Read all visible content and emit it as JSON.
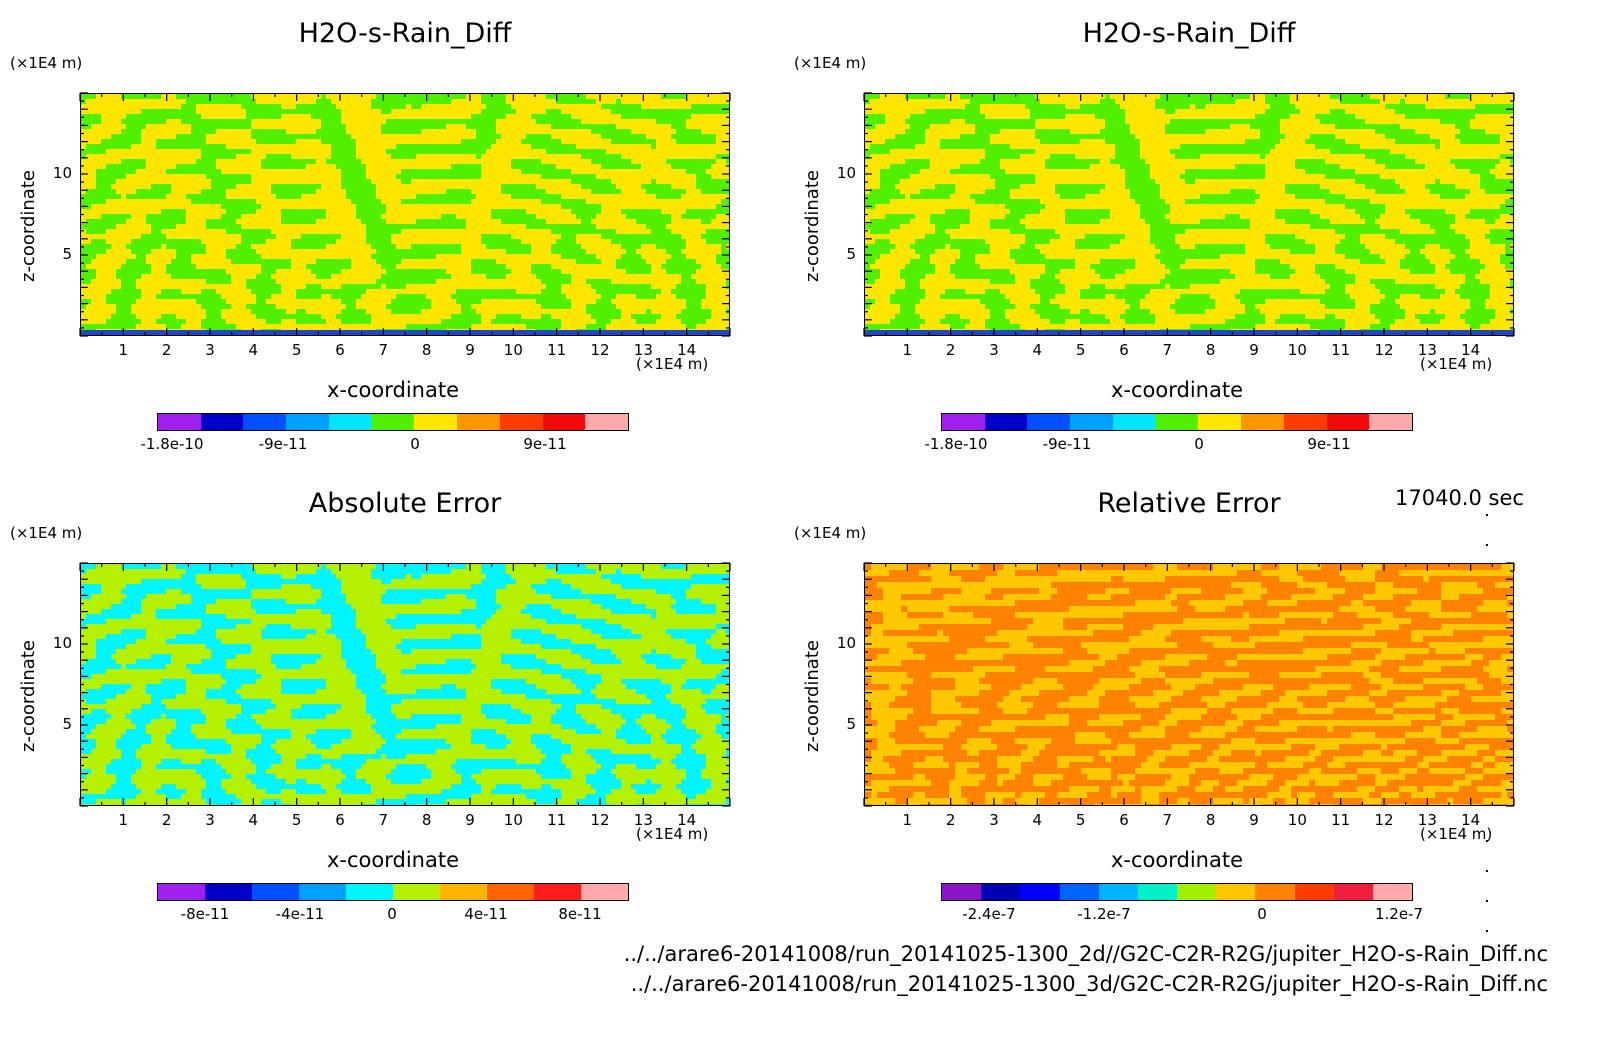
{
  "time_label": "17040.0 sec",
  "file_paths": [
    "../../arare6-20141008/run_20141025-1300_2d//G2C-C2R-R2G/jupiter_H2O-s-Rain_Diff.nc",
    "../../arare6-20141008/run_20141025-1300_3d/G2C-C2R-R2G/jupiter_H2O-s-Rain_Diff.nc"
  ],
  "chart_data": [
    {
      "type": "heatmap",
      "title": "H2O-s-Rain_Diff",
      "xlabel": "x-coordinate",
      "ylabel": "z-coordinate",
      "x_unit": "(×1E4 m)",
      "y_unit": "(×1E4 m)",
      "xlim": [
        0,
        15
      ],
      "ylim": [
        0,
        15
      ],
      "xticks": [
        "1",
        "2",
        "3",
        "4",
        "5",
        "6",
        "7",
        "8",
        "9",
        "10",
        "11",
        "12",
        "13",
        "14"
      ],
      "yticks": [
        "5",
        "10"
      ],
      "palette": [
        "#a020f0",
        "#0000c8",
        "#0050ff",
        "#00a0ff",
        "#00e6ff",
        "#50f000",
        "#ffe600",
        "#ff9600",
        "#ff3c00",
        "#f00a0a",
        "#ffaaaa"
      ],
      "dominant_colors": [
        "#50f000",
        "#ffe600"
      ],
      "colorbar_labels": [
        "-1.8e-10",
        "-9e-11",
        "0",
        "9e-11"
      ]
    },
    {
      "type": "heatmap",
      "title": "H2O-s-Rain_Diff",
      "xlabel": "x-coordinate",
      "ylabel": "z-coordinate",
      "x_unit": "(×1E4 m)",
      "y_unit": "(×1E4 m)",
      "xlim": [
        0,
        15
      ],
      "ylim": [
        0,
        15
      ],
      "xticks": [
        "1",
        "2",
        "3",
        "4",
        "5",
        "6",
        "7",
        "8",
        "9",
        "10",
        "11",
        "12",
        "13",
        "14"
      ],
      "yticks": [
        "5",
        "10"
      ],
      "palette": [
        "#a020f0",
        "#0000c8",
        "#0050ff",
        "#00a0ff",
        "#00e6ff",
        "#50f000",
        "#ffe600",
        "#ff9600",
        "#ff3c00",
        "#f00a0a",
        "#ffaaaa"
      ],
      "dominant_colors": [
        "#50f000",
        "#ffe600"
      ],
      "colorbar_labels": [
        "-1.8e-10",
        "-9e-11",
        "0",
        "9e-11"
      ]
    },
    {
      "type": "heatmap",
      "title": "Absolute Error",
      "xlabel": "x-coordinate",
      "ylabel": "z-coordinate",
      "x_unit": "(×1E4 m)",
      "y_unit": "(×1E4 m)",
      "xlim": [
        0,
        15
      ],
      "ylim": [
        0,
        15
      ],
      "xticks": [
        "1",
        "2",
        "3",
        "4",
        "5",
        "6",
        "7",
        "8",
        "9",
        "10",
        "11",
        "12",
        "13",
        "14"
      ],
      "yticks": [
        "5",
        "10"
      ],
      "palette": [
        "#a020f0",
        "#0000c8",
        "#0050ff",
        "#00a0ff",
        "#00f5ff",
        "#b4f000",
        "#ffb400",
        "#ff6400",
        "#ff1e1e",
        "#ffaaaa"
      ],
      "dominant_colors": [
        "#00f5ff",
        "#b4f000"
      ],
      "colorbar_labels": [
        "-8e-11",
        "-4e-11",
        "0",
        "4e-11",
        "8e-11"
      ]
    },
    {
      "type": "heatmap",
      "title": "Relative Error",
      "xlabel": "x-coordinate",
      "ylabel": "z-coordinate",
      "x_unit": "(×1E4 m)",
      "y_unit": "(×1E4 m)",
      "xlim": [
        0,
        15
      ],
      "ylim": [
        0,
        15
      ],
      "xticks": [
        "1",
        "2",
        "3",
        "4",
        "5",
        "6",
        "7",
        "8",
        "9",
        "10",
        "11",
        "12",
        "13",
        "14"
      ],
      "yticks": [
        "5",
        "10"
      ],
      "palette": [
        "#8c14c8",
        "#0000b4",
        "#0000ff",
        "#0064ff",
        "#00b4ff",
        "#00f0c8",
        "#a0f000",
        "#ffc800",
        "#ff8200",
        "#ff3c00",
        "#f01e3c",
        "#ffaaaa"
      ],
      "dominant_colors": [
        "#ffc800",
        "#ff8200"
      ],
      "colorbar_labels": [
        "-2.4e-7",
        "-1.2e-7",
        "0",
        "1.2e-7"
      ]
    }
  ]
}
